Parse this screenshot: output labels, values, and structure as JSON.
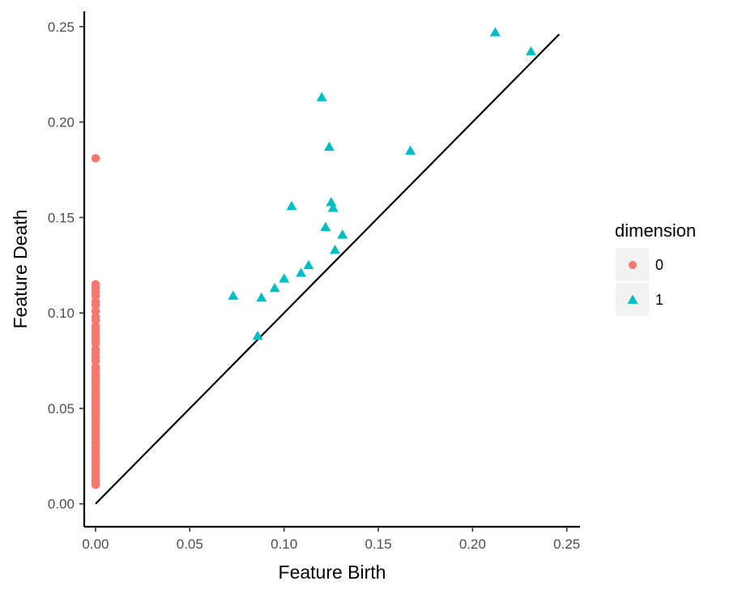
{
  "chart_data": {
    "type": "scatter",
    "title": "",
    "xlabel": "Feature Birth",
    "ylabel": "Feature Death",
    "xlim": [
      -0.006,
      0.257
    ],
    "ylim": [
      -0.012,
      0.258
    ],
    "xticks": [
      0.0,
      0.05,
      0.1,
      0.15,
      0.2,
      0.25
    ],
    "xtick_labels": [
      "0.00",
      "0.05",
      "0.10",
      "0.15",
      "0.20",
      "0.25"
    ],
    "yticks": [
      0.0,
      0.05,
      0.1,
      0.15,
      0.2,
      0.25
    ],
    "ytick_labels": [
      "0.00",
      "0.05",
      "0.10",
      "0.15",
      "0.20",
      "0.25"
    ],
    "grid": false,
    "diagonal": {
      "from": [
        0.0,
        0.0
      ],
      "to": [
        0.246,
        0.246
      ],
      "color": "#000000"
    },
    "legend": {
      "title": "dimension",
      "placement": "right",
      "entries": [
        {
          "label": "0",
          "shape": "circle",
          "color": "#F8766D"
        },
        {
          "label": "1",
          "shape": "triangle",
          "color": "#00BFC4"
        }
      ]
    },
    "series": [
      {
        "name": "0",
        "shape": "circle",
        "color": "#F8766D",
        "x": [
          0,
          0,
          0,
          0,
          0,
          0,
          0,
          0,
          0,
          0,
          0,
          0,
          0,
          0,
          0,
          0,
          0,
          0,
          0,
          0,
          0,
          0,
          0,
          0,
          0,
          0,
          0,
          0,
          0,
          0,
          0,
          0,
          0,
          0,
          0,
          0,
          0,
          0,
          0,
          0,
          0,
          0,
          0,
          0,
          0,
          0,
          0,
          0,
          0,
          0,
          0,
          0,
          0,
          0,
          0,
          0,
          0,
          0,
          0
        ],
        "y": [
          0.181,
          0.115,
          0.113,
          0.111,
          0.109,
          0.106,
          0.104,
          0.101,
          0.098,
          0.096,
          0.093,
          0.091,
          0.089,
          0.086,
          0.084,
          0.081,
          0.079,
          0.077,
          0.075,
          0.072,
          0.07,
          0.068,
          0.066,
          0.064,
          0.062,
          0.06,
          0.058,
          0.056,
          0.054,
          0.052,
          0.05,
          0.048,
          0.046,
          0.044,
          0.042,
          0.04,
          0.038,
          0.036,
          0.034,
          0.032,
          0.03,
          0.028,
          0.026,
          0.024,
          0.022,
          0.02,
          0.018,
          0.016,
          0.014,
          0.012,
          0.011,
          0.01,
          0.047,
          0.053,
          0.057,
          0.063,
          0.067,
          0.071,
          0.087
        ]
      },
      {
        "name": "1",
        "shape": "triangle",
        "color": "#00BFC4",
        "x": [
          0.212,
          0.231,
          0.12,
          0.124,
          0.167,
          0.104,
          0.125,
          0.126,
          0.122,
          0.131,
          0.127,
          0.113,
          0.109,
          0.1,
          0.095,
          0.073,
          0.088,
          0.086
        ],
        "y": [
          0.247,
          0.237,
          0.213,
          0.187,
          0.185,
          0.156,
          0.158,
          0.155,
          0.145,
          0.141,
          0.133,
          0.125,
          0.121,
          0.118,
          0.113,
          0.109,
          0.108,
          0.088
        ]
      }
    ]
  }
}
